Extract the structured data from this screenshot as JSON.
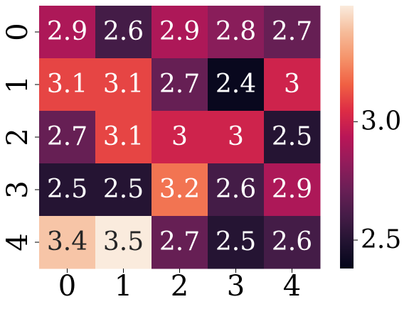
{
  "chart_data": {
    "type": "heatmap",
    "x": [
      0,
      1,
      2,
      3,
      4
    ],
    "y": [
      0,
      1,
      2,
      3,
      4
    ],
    "values": [
      [
        2.9,
        2.6,
        2.9,
        2.8,
        2.7
      ],
      [
        3.1,
        3.1,
        2.7,
        2.4,
        3
      ],
      [
        2.7,
        3.1,
        3,
        3,
        2.5
      ],
      [
        2.5,
        2.5,
        3.2,
        2.6,
        2.9
      ],
      [
        3.4,
        3.5,
        2.7,
        2.5,
        2.6
      ]
    ],
    "colormap": "rocket",
    "clim": [
      2.38,
      3.49
    ],
    "cticks": [
      2.5,
      {
        "value": 3,
        "label": "3.0"
      }
    ]
  }
}
